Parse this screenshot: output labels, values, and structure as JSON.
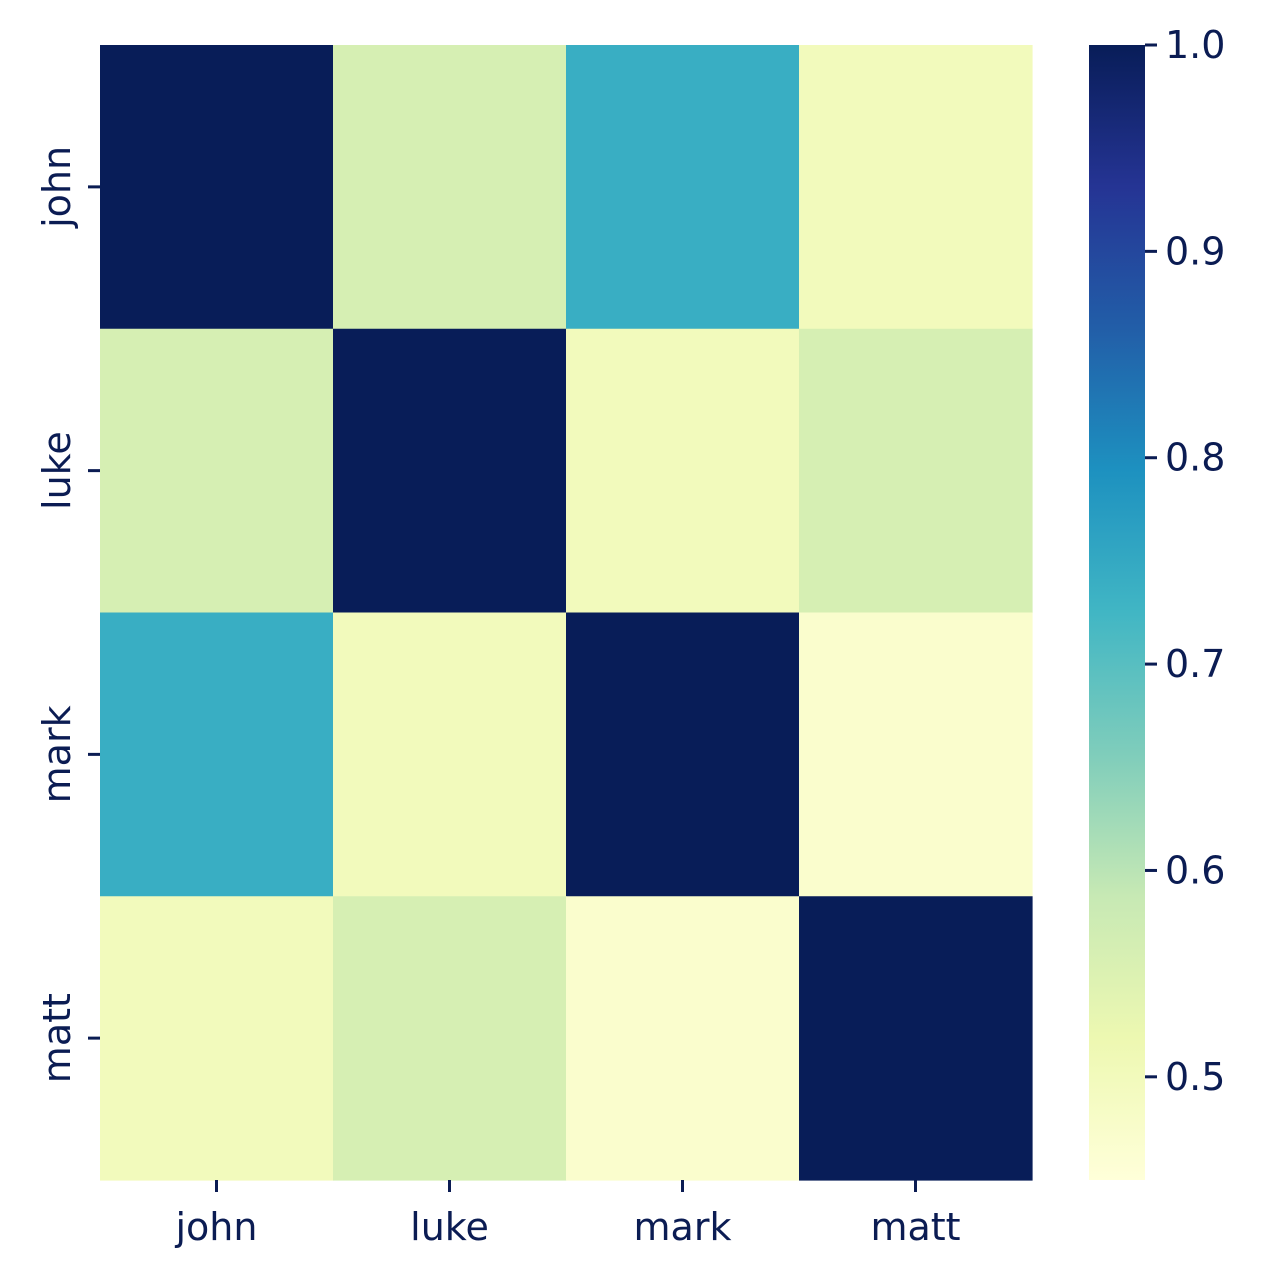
{
  "chart_data": {
    "type": "heatmap",
    "title": "",
    "xlabel": "",
    "ylabel": "",
    "x_categories": [
      "john",
      "luke",
      "mark",
      "matt"
    ],
    "y_categories": [
      "john",
      "luke",
      "mark",
      "matt"
    ],
    "values": [
      [
        1.0,
        0.56,
        0.74,
        0.5
      ],
      [
        0.56,
        1.0,
        0.5,
        0.56
      ],
      [
        0.74,
        0.5,
        1.0,
        0.47
      ],
      [
        0.5,
        0.56,
        0.47,
        1.0
      ]
    ],
    "colormap": "YlGnBu",
    "colorbar": {
      "min": 0.45,
      "max": 1.0,
      "ticks": [
        0.5,
        0.6,
        0.7,
        0.8,
        0.9,
        1.0
      ],
      "tick_labels": [
        "0.5",
        "0.6",
        "0.7",
        "0.8",
        "0.9",
        "1.0"
      ],
      "position": "right"
    },
    "colors": {
      "text": "#0b1c53",
      "scale": [
        "#ffffd9",
        "#edf8b1",
        "#c7e9b4",
        "#7fcdbb",
        "#41b6c4",
        "#1d91c0",
        "#225ea8",
        "#253494",
        "#081d58"
      ]
    }
  }
}
